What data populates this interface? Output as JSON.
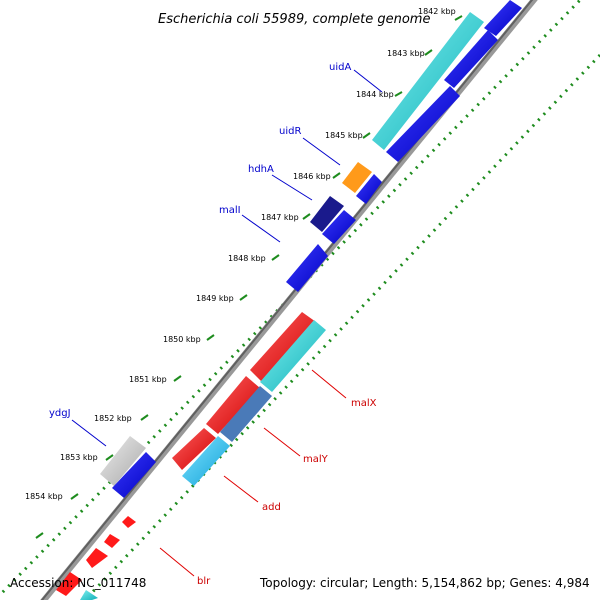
{
  "title": "Escherichia coli 55989, complete genome",
  "footer": {
    "accession": "Accession: NC_011748",
    "topology": "Topology: circular; Length: 5,154,862 bp; Genes: 4,984"
  },
  "ticks": [
    "1842 kbp",
    "1843 kbp",
    "1844 kbp",
    "1845 kbp",
    "1846 kbp",
    "1847 kbp",
    "1848 kbp",
    "1849 kbp",
    "1850 kbp",
    "1851 kbp",
    "1852 kbp",
    "1853 kbp",
    "1854 kbp"
  ],
  "gene_labels": [
    {
      "name": "uidA",
      "color": "#0000cc"
    },
    {
      "name": "uidR",
      "color": "#0000cc"
    },
    {
      "name": "hdhA",
      "color": "#0000cc"
    },
    {
      "name": "malI",
      "color": "#0000cc"
    },
    {
      "name": "ydgJ",
      "color": "#0000cc"
    },
    {
      "name": "malX",
      "color": "#cc0000"
    },
    {
      "name": "malY",
      "color": "#cc0000"
    },
    {
      "name": "add",
      "color": "#cc0000"
    },
    {
      "name": "blr",
      "color": "#cc0000"
    }
  ],
  "colors": {
    "cds_forward": "#0000e6",
    "cds_reverse": "#ff1a1a",
    "gene_cyan": "#1fd1d1",
    "gene_lightblue": "#22c6f0",
    "gene_steelblue": "#4a7ab8",
    "gene_navy": "#1a1a8c",
    "gene_orange": "#ff9a1a",
    "gene_gray": "#c8c8c8",
    "backbone": "#808080",
    "gc_dots": "#1e8c1e"
  }
}
